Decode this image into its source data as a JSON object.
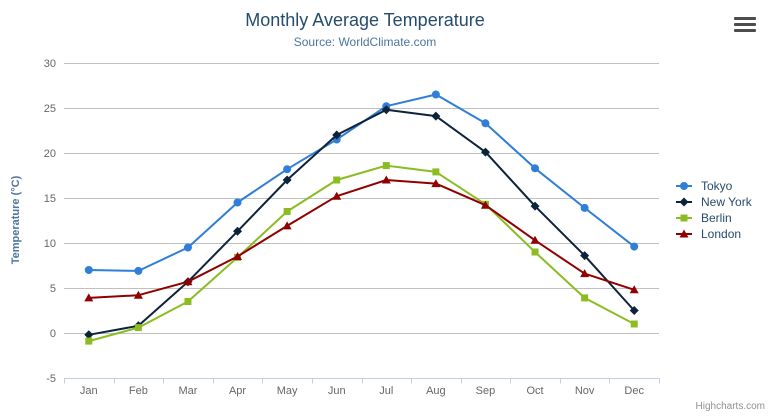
{
  "chart": {
    "title": "Monthly Average Temperature",
    "subtitle": "Source: WorldClimate.com",
    "y_axis_title": "Temperature (°C)",
    "credits": "Highcharts.com",
    "title_color": "#274b6d",
    "subtitle_color": "#4d759e",
    "gridline_color": "#c0c0c0",
    "axis_line_color": "#c0d0e0",
    "tick_label_color": "#666666"
  },
  "chart_data": {
    "type": "line",
    "title": "Monthly Average Temperature",
    "subtitle": "Source: WorldClimate.com",
    "xlabel": "",
    "ylabel": "Temperature (°C)",
    "categories": [
      "Jan",
      "Feb",
      "Mar",
      "Apr",
      "May",
      "Jun",
      "Jul",
      "Aug",
      "Sep",
      "Oct",
      "Nov",
      "Dec"
    ],
    "ylim": [
      -5,
      30
    ],
    "y_ticks": [
      30,
      25,
      20,
      15,
      10,
      5,
      0,
      -5
    ],
    "grid": true,
    "legend_position": "right",
    "series": [
      {
        "name": "Tokyo",
        "color": "#2f7ed8",
        "marker": "circle",
        "values": [
          7.0,
          6.9,
          9.5,
          14.5,
          18.2,
          21.5,
          25.2,
          26.5,
          23.3,
          18.3,
          13.9,
          9.6
        ]
      },
      {
        "name": "New York",
        "color": "#0d233a",
        "marker": "diamond",
        "values": [
          -0.2,
          0.8,
          5.7,
          11.3,
          17.0,
          22.0,
          24.8,
          24.1,
          20.1,
          14.1,
          8.6,
          2.5
        ]
      },
      {
        "name": "Berlin",
        "color": "#8bbc21",
        "marker": "square",
        "values": [
          -0.9,
          0.6,
          3.5,
          8.4,
          13.5,
          17.0,
          18.6,
          17.9,
          14.3,
          9.0,
          3.9,
          1.0
        ]
      },
      {
        "name": "London",
        "color": "#910000",
        "marker": "triangle",
        "values": [
          3.9,
          4.2,
          5.7,
          8.5,
          11.9,
          15.2,
          17.0,
          16.6,
          14.2,
          10.3,
          6.6,
          4.8
        ]
      }
    ]
  }
}
